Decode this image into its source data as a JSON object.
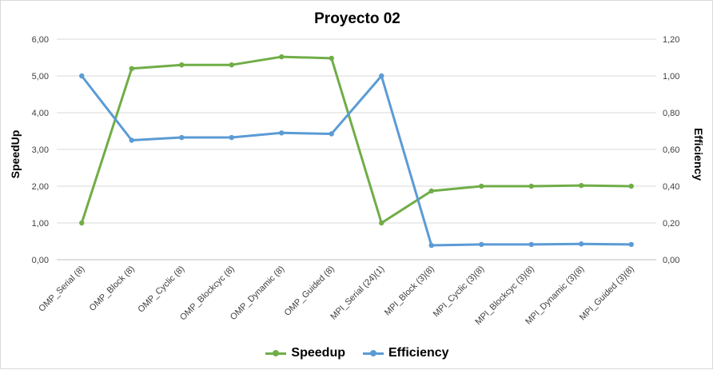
{
  "chart_data": {
    "type": "line",
    "title": "Proyecto 02",
    "ylabel": "SpeedUp",
    "y2label": "Efficiency",
    "categories": [
      "OMP_Serial (8)",
      "OMP_Block (8)",
      "OMP_Cyclic (8)",
      "OMP_Blockcyc (8)",
      "OMP_Dynamic (8)",
      "OMP_Guided (8)",
      "MPI_Serial (24)(1)",
      "MPI_Block (3)(8)",
      "MPI_Cyclic (3)(8)",
      "MPI_Blockcyc (3)(8)",
      "MPI_Dynamic (3)(8)",
      "MPI_Guided (3)(8)"
    ],
    "ylim": [
      0,
      6
    ],
    "y2lim": [
      0,
      1.2
    ],
    "yticks": [
      "0,00",
      "1,00",
      "2,00",
      "3,00",
      "4,00",
      "5,00",
      "6,00"
    ],
    "y2ticks": [
      "0,00",
      "0,20",
      "0,40",
      "0,60",
      "0,80",
      "1,00",
      "1,20"
    ],
    "grid": true,
    "legend_position": "bottom",
    "series": [
      {
        "name": "Speedup",
        "axis": "left",
        "color": "#70ad47",
        "values": [
          1.0,
          5.2,
          5.3,
          5.3,
          5.52,
          5.48,
          1.0,
          1.87,
          2.0,
          2.0,
          2.02,
          2.0
        ]
      },
      {
        "name": "Efficiency",
        "axis": "right",
        "color": "#5b9bd5",
        "values": [
          1.0,
          0.65,
          0.665,
          0.665,
          0.69,
          0.685,
          1.0,
          0.078,
          0.083,
          0.083,
          0.086,
          0.083
        ]
      }
    ]
  }
}
